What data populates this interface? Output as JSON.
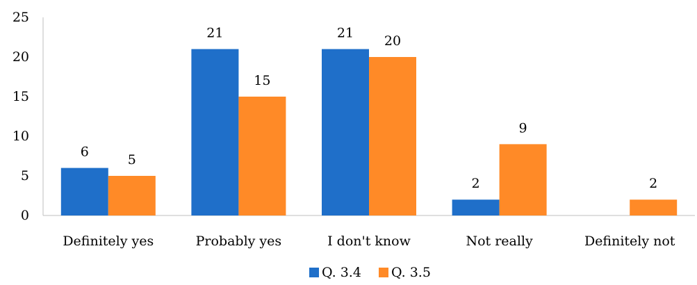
{
  "chart_data": {
    "type": "bar",
    "title": "",
    "xlabel": "",
    "ylabel": "",
    "categories": [
      "Definitely yes",
      "Probably yes",
      "I don't know",
      "Not really",
      "Definitely not"
    ],
    "series": [
      {
        "name": "Q. 3.4",
        "color": "#1f6fc9",
        "values": [
          6,
          21,
          21,
          2,
          null
        ]
      },
      {
        "name": "Q. 3.5",
        "color": "#ff8a27",
        "values": [
          5,
          15,
          20,
          9,
          2
        ]
      }
    ],
    "ylim": [
      0,
      25
    ],
    "yticks": [
      0,
      5,
      10,
      15,
      20,
      25
    ],
    "grid": false,
    "legend": "bottom-center"
  }
}
